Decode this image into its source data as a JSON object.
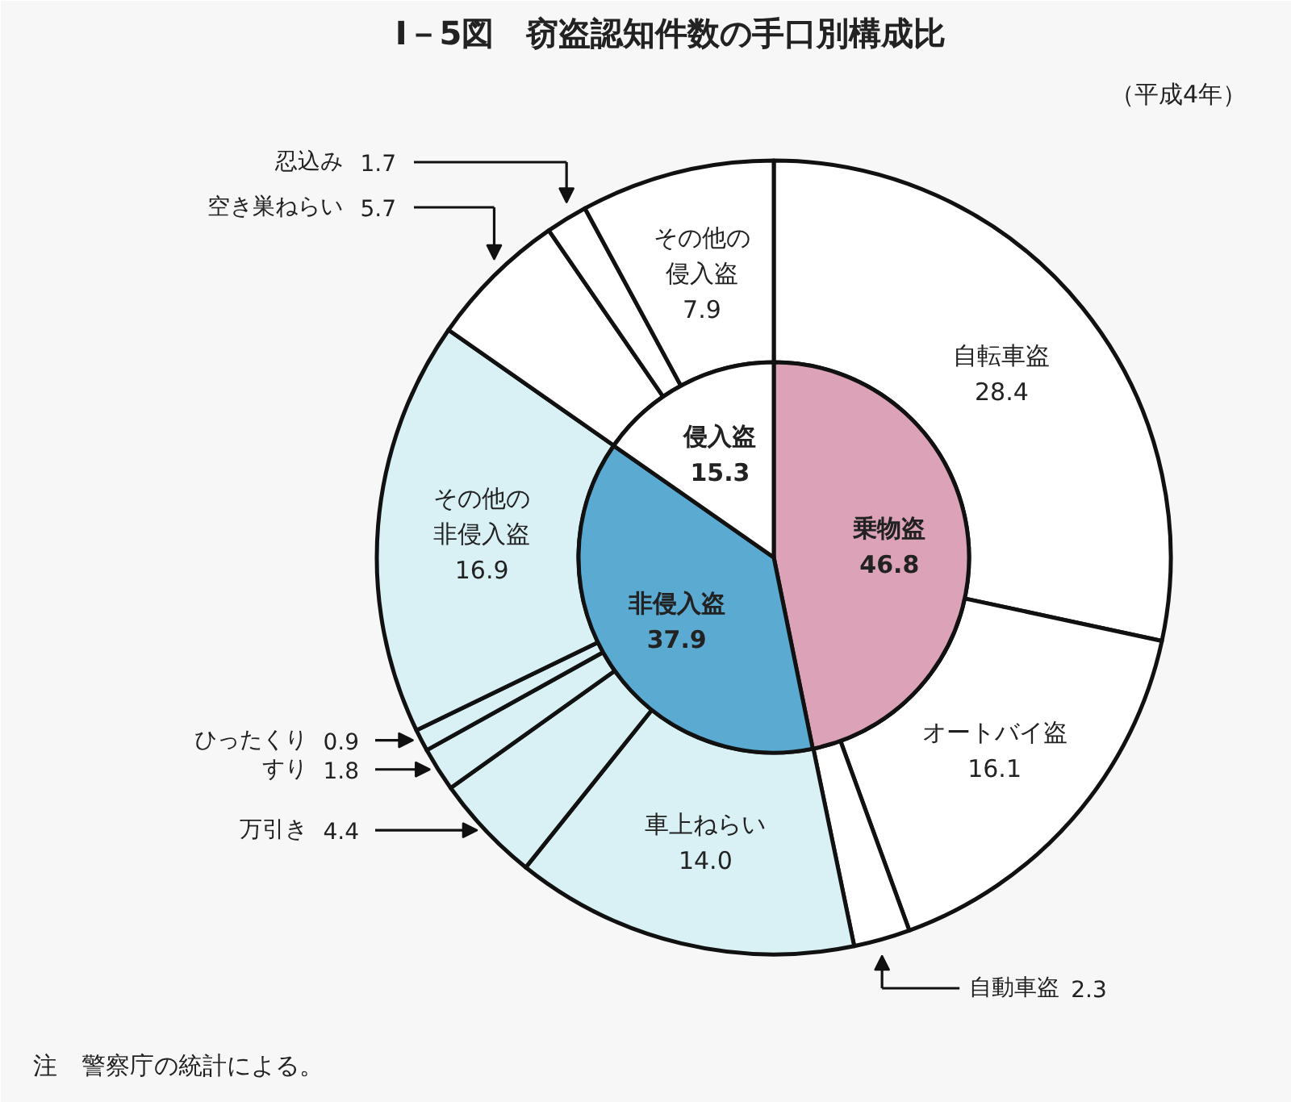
{
  "chart_data": [
    {
      "type": "donut",
      "title": "Ⅰ－5図　窃盗認知件数の手口別構成比",
      "subtitle": "（平成4年）",
      "annotations": [
        "注　警察庁の統計による。"
      ],
      "categories": [
        "自転車盗",
        "オートバイ盗",
        "自動車盗",
        "車上ねらい",
        "万引き",
        "すり",
        "ひったくり",
        "その他の非侵入盗",
        "空き巣ねらい",
        "忍込み",
        "その他の侵入盗"
      ],
      "values": [
        28.4,
        16.1,
        2.3,
        14.0,
        4.4,
        1.8,
        0.9,
        16.9,
        5.7,
        1.7,
        7.9
      ],
      "colors": [
        "#ffffff",
        "#ffffff",
        "#ffffff",
        "#d9f1f5",
        "#d9f1f5",
        "#d9f1f5",
        "#d9f1f5",
        "#d9f1f5",
        "#ffffff",
        "#ffffff",
        "#ffffff"
      ],
      "value_labels": [
        "28.4",
        "16.1",
        "2.3",
        "14.0",
        "4.4",
        "1.8",
        "0.9",
        "16.9",
        "5.7",
        "1.7",
        "7.9"
      ]
    },
    {
      "type": "pie",
      "categories": [
        "乗物盗",
        "非侵入盗",
        "侵入盗"
      ],
      "values": [
        46.8,
        37.9,
        15.3
      ],
      "colors": [
        "#dca3b8",
        "#5aaad2",
        "#ffffff"
      ],
      "data_labels": true
    }
  ]
}
